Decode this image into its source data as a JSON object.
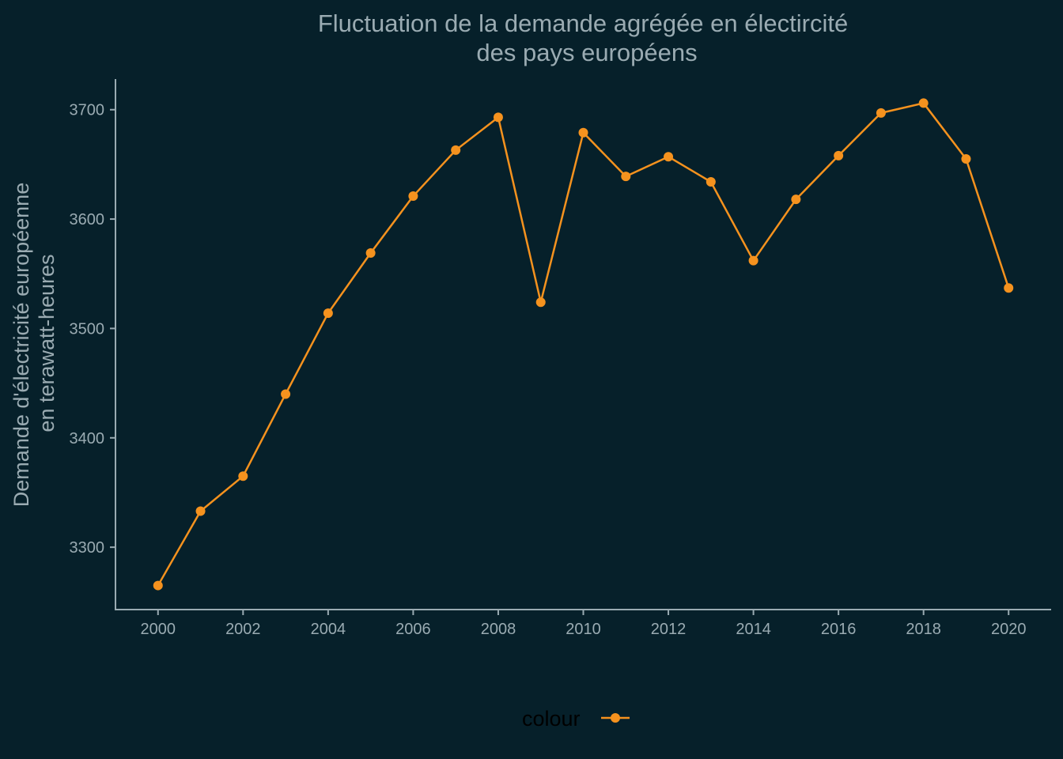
{
  "chart_data": {
    "type": "line",
    "title_lines": [
      "Fluctuation de la demande agrégée en électircité",
      "des pays européens"
    ],
    "ylabel_lines": [
      "Demande d'électricité européenne",
      "en terawatt-heures"
    ],
    "xlabel": "",
    "x": [
      2000,
      2001,
      2002,
      2003,
      2004,
      2005,
      2006,
      2007,
      2008,
      2009,
      2010,
      2011,
      2012,
      2013,
      2014,
      2015,
      2016,
      2017,
      2018,
      2019,
      2020
    ],
    "series": [
      {
        "values": [
          3265,
          3333,
          3365,
          3440,
          3514,
          3569,
          3621,
          3663,
          3693,
          3524,
          3679,
          3639,
          3657,
          3634,
          3562,
          3618,
          3658,
          3697,
          3706,
          3655,
          3537
        ],
        "color": "#f5921e"
      }
    ],
    "xticks": [
      "2000",
      "2002",
      "2004",
      "2006",
      "2008",
      "2010",
      "2012",
      "2014",
      "2016",
      "2018",
      "2020"
    ],
    "yticks": [
      "3300",
      "3400",
      "3500",
      "3600",
      "3700"
    ],
    "xlim": [
      1999,
      2021
    ],
    "ylim": [
      3243,
      3728
    ],
    "grid": false,
    "legend": {
      "title": "colour",
      "position": "bottom"
    },
    "colors": {
      "background": "#06202a",
      "text": "#9aabb2",
      "line": "#f5921e"
    }
  }
}
